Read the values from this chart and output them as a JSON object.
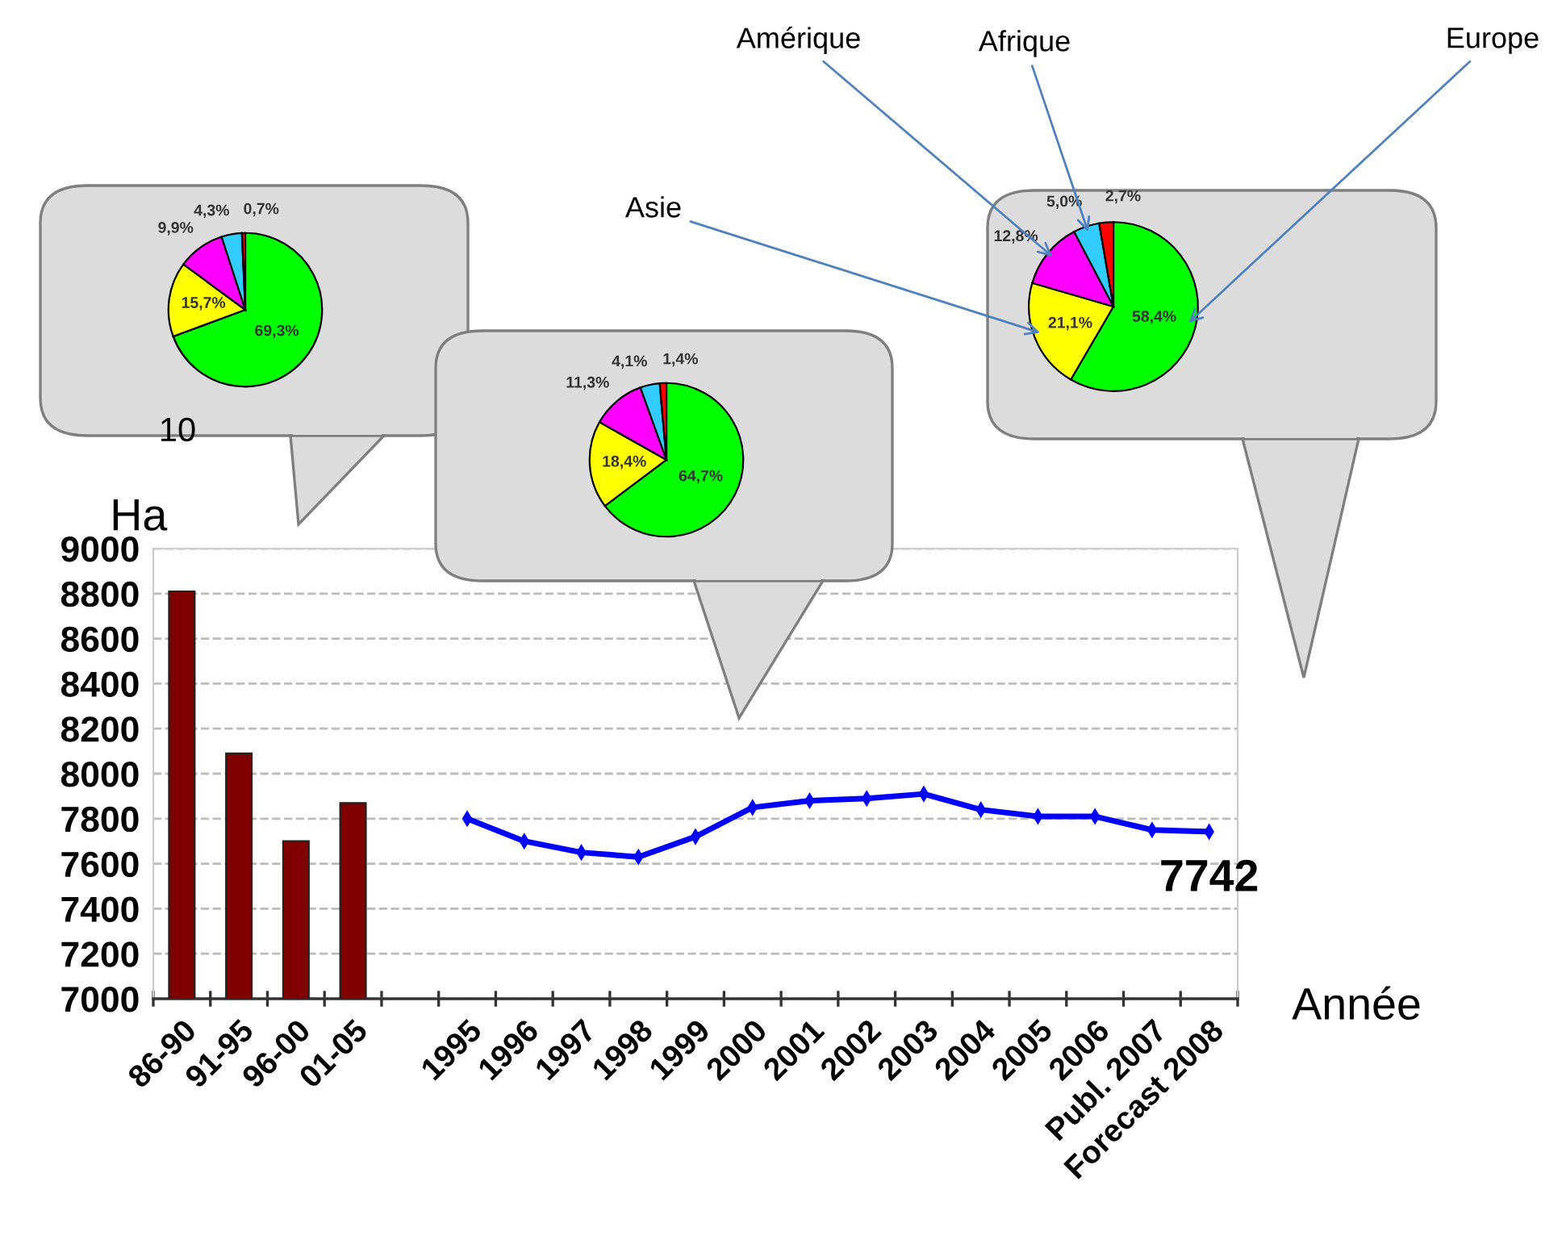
{
  "chart_data": [
    {
      "type": "pie",
      "categories": [
        null,
        null,
        null,
        null,
        null
      ],
      "values": [
        69.3,
        15.7,
        9.9,
        4.3,
        0.7
      ],
      "colors": [
        "#00ff00",
        "#ffff00",
        "#ff00ff",
        "#33ccff",
        "#ff0000"
      ],
      "value_labels": [
        "69,3%",
        "15,7%",
        "9,9%",
        "4,3%",
        "0,7%"
      ],
      "annotations": [
        "10"
      ],
      "legend": false
    },
    {
      "type": "pie",
      "categories": [
        null,
        null,
        null,
        null,
        null
      ],
      "values": [
        64.7,
        18.4,
        11.3,
        4.1,
        1.4
      ],
      "colors": [
        "#00ff00",
        "#ffff00",
        "#ff00ff",
        "#33ccff",
        "#ff0000"
      ],
      "value_labels": [
        "64,7%",
        "18,4%",
        "11,3%",
        "4,1%",
        "1,4%"
      ],
      "legend": false
    },
    {
      "type": "pie",
      "categories": [
        "Europe",
        "Asie",
        "Amérique",
        "Afrique",
        null
      ],
      "values": [
        58.4,
        21.1,
        12.8,
        5.0,
        2.7
      ],
      "colors": [
        "#00ff00",
        "#ffff00",
        "#ff00ff",
        "#33ccff",
        "#ff0000"
      ],
      "value_labels": [
        "58,4%",
        "21,1%",
        "12,8%",
        "5,0%",
        "2,7%"
      ],
      "legend": false
    },
    {
      "type": "bar",
      "ylabel": "Ha",
      "xlabel": "Année",
      "categories": [
        "86-90",
        "91-95",
        "96-00",
        "01-05",
        null,
        "1995",
        "1996",
        "1997",
        "1998",
        "1999",
        "2000",
        "2001",
        "2002",
        "2003",
        "2004",
        "2005",
        "2006",
        "Publ. 2007",
        "Forecast 2008"
      ],
      "series": [
        {
          "type": "bar",
          "color": "#800000",
          "values": [
            8810,
            8090,
            7700,
            7870,
            null,
            null,
            null,
            null,
            null,
            null,
            null,
            null,
            null,
            null,
            null,
            null,
            null,
            null,
            null
          ]
        },
        {
          "type": "line",
          "color": "#0000ff",
          "values": [
            null,
            null,
            null,
            null,
            null,
            7800,
            7700,
            7650,
            7630,
            7720,
            7850,
            7880,
            7890,
            7910,
            7840,
            7810,
            7810,
            7750,
            7742
          ],
          "value_labels": [
            null,
            null,
            null,
            null,
            null,
            null,
            null,
            null,
            null,
            null,
            null,
            null,
            null,
            null,
            null,
            null,
            null,
            null,
            "7742"
          ]
        }
      ],
      "ylim": [
        7000,
        9000
      ],
      "yticks": [
        7000,
        7200,
        7400,
        7600,
        7800,
        8000,
        8200,
        8400,
        8600,
        8800,
        9000
      ],
      "grid": "y",
      "legend": false,
      "marker": "diamond",
      "line_style": "solid"
    }
  ]
}
